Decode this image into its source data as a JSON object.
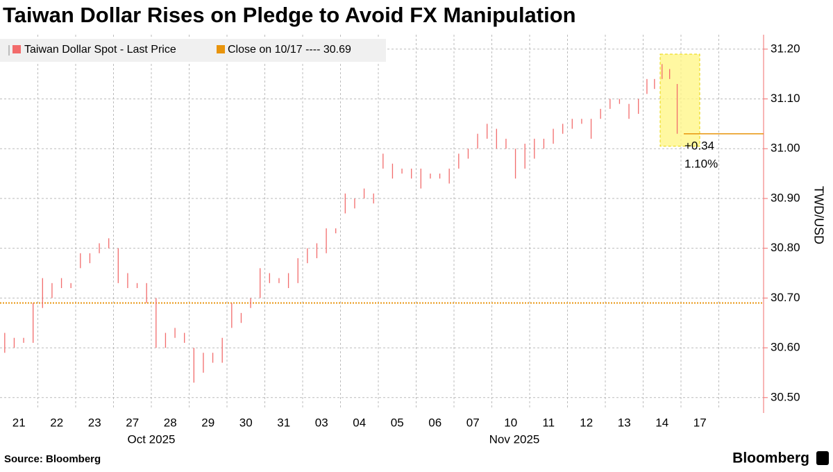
{
  "chart_data": {
    "type": "range_bars",
    "title": "Taiwan Dollar Rises on Pledge to Avoid FX Manipulation",
    "y_axis_label": "TWD/USD",
    "source": "Source: Bloomberg",
    "brand": "Bloomberg",
    "categories": [
      "21",
      "22",
      "23",
      "27",
      "28",
      "29",
      "30",
      "31",
      "03",
      "04",
      "05",
      "06",
      "07",
      "10",
      "11",
      "12",
      "13",
      "14",
      "17"
    ],
    "month_labels": [
      "Oct 2025",
      "Nov 2025"
    ],
    "series": [
      {
        "name": "Taiwan Dollar Spot - Last Price",
        "color": "#f26b6b",
        "low": [
          [
            30.59,
            30.6,
            30.61,
            30.61
          ],
          [
            30.68,
            30.7,
            30.72,
            30.72
          ],
          [
            30.76,
            30.77,
            30.79,
            30.8
          ],
          [
            30.73,
            30.72,
            30.72,
            30.69
          ],
          [
            30.6,
            30.6,
            30.62,
            30.61
          ],
          [
            30.53,
            30.55,
            30.57,
            30.57
          ],
          [
            30.64,
            30.65,
            30.68,
            30.7
          ],
          [
            30.73,
            30.73,
            30.72,
            30.73
          ],
          [
            30.77,
            30.78,
            30.79,
            30.83
          ],
          [
            30.87,
            30.88,
            30.9,
            30.89
          ],
          [
            30.96,
            30.94,
            30.95,
            30.94
          ],
          [
            30.92,
            30.94,
            30.94,
            30.93
          ],
          [
            30.96,
            30.98,
            31.0,
            31.02
          ],
          [
            31.0,
            31.0,
            30.94,
            30.96
          ],
          [
            30.98,
            31.0,
            31.01,
            31.03
          ],
          [
            31.04,
            31.05,
            31.02,
            31.06
          ],
          [
            31.08,
            31.09,
            31.06,
            31.07
          ],
          [
            31.11,
            31.12,
            31.14,
            31.14,
            31.03
          ],
          []
        ],
        "high": [
          [
            30.63,
            30.62,
            30.62,
            30.69
          ],
          [
            30.74,
            30.73,
            30.74,
            30.73
          ],
          [
            30.79,
            30.79,
            30.81,
            30.82
          ],
          [
            30.8,
            30.75,
            30.73,
            30.73
          ],
          [
            30.7,
            30.63,
            30.64,
            30.63
          ],
          [
            30.6,
            30.59,
            30.59,
            30.62
          ],
          [
            30.69,
            30.67,
            30.7,
            30.76
          ],
          [
            30.75,
            30.74,
            30.75,
            30.78
          ],
          [
            30.8,
            30.81,
            30.84,
            30.84
          ],
          [
            30.91,
            30.9,
            30.92,
            30.91
          ],
          [
            30.99,
            30.97,
            30.96,
            30.96
          ],
          [
            30.96,
            30.95,
            30.95,
            30.96
          ],
          [
            30.99,
            31.0,
            31.03,
            31.05
          ],
          [
            31.04,
            31.02,
            31.0,
            31.01
          ],
          [
            31.02,
            31.02,
            31.04,
            31.05
          ],
          [
            31.06,
            31.06,
            31.06,
            31.08
          ],
          [
            31.1,
            31.1,
            31.09,
            31.1
          ],
          [
            31.14,
            31.14,
            31.17,
            31.16,
            31.13
          ],
          []
        ]
      },
      {
        "name": "Close on 10/17 ---- 30.69",
        "color": "#e8940c",
        "value": 30.69
      }
    ],
    "last_value": 31.03,
    "highlight_ylim": [
      31.005,
      31.19
    ],
    "annotations": [
      "+0.34",
      "1.10%"
    ],
    "ylim": [
      30.476,
      31.229
    ],
    "yticks": [
      {
        "value": 30.5,
        "label": "30.50"
      },
      {
        "value": 30.6,
        "label": "30.60"
      },
      {
        "value": 30.7,
        "label": "30.70"
      },
      {
        "value": 30.8,
        "label": "30.80"
      },
      {
        "value": 30.9,
        "label": "30.90"
      },
      {
        "value": 31.0,
        "label": "31.00"
      },
      {
        "value": 31.1,
        "label": "31.10"
      },
      {
        "value": 31.2,
        "label": "31.20"
      }
    ],
    "grid": true
  }
}
